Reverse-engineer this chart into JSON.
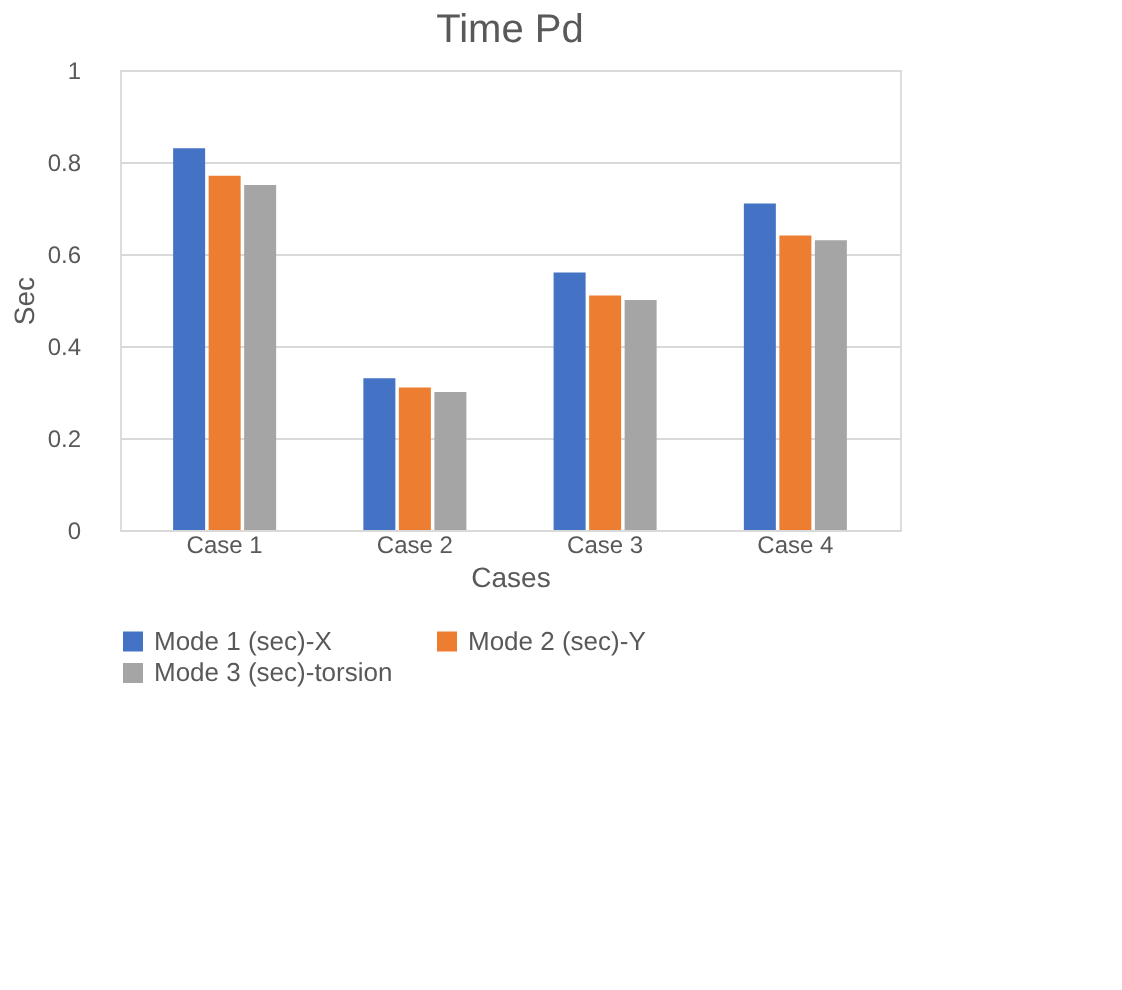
{
  "chart_data": {
    "type": "bar",
    "title": "Time Pd",
    "xlabel": "Cases",
    "ylabel": "Sec",
    "categories": [
      "Case 1",
      "Case 2",
      "Case 3",
      "Case 4"
    ],
    "series": [
      {
        "name": "Mode 1 (sec)-X",
        "color": "#4472c4",
        "values": [
          0.83,
          0.33,
          0.56,
          0.71
        ]
      },
      {
        "name": "Mode 2 (sec)-Y",
        "color": "#ed7d31",
        "values": [
          0.77,
          0.31,
          0.51,
          0.64
        ]
      },
      {
        "name": "Mode 3 (sec)-torsion",
        "color": "#a5a5a5",
        "values": [
          0.75,
          0.3,
          0.5,
          0.63
        ]
      }
    ],
    "ylim": [
      0,
      1
    ],
    "yticks": [
      0,
      0.2,
      0.4,
      0.6,
      0.8,
      1
    ],
    "grid": "y",
    "legend": "bottom"
  }
}
